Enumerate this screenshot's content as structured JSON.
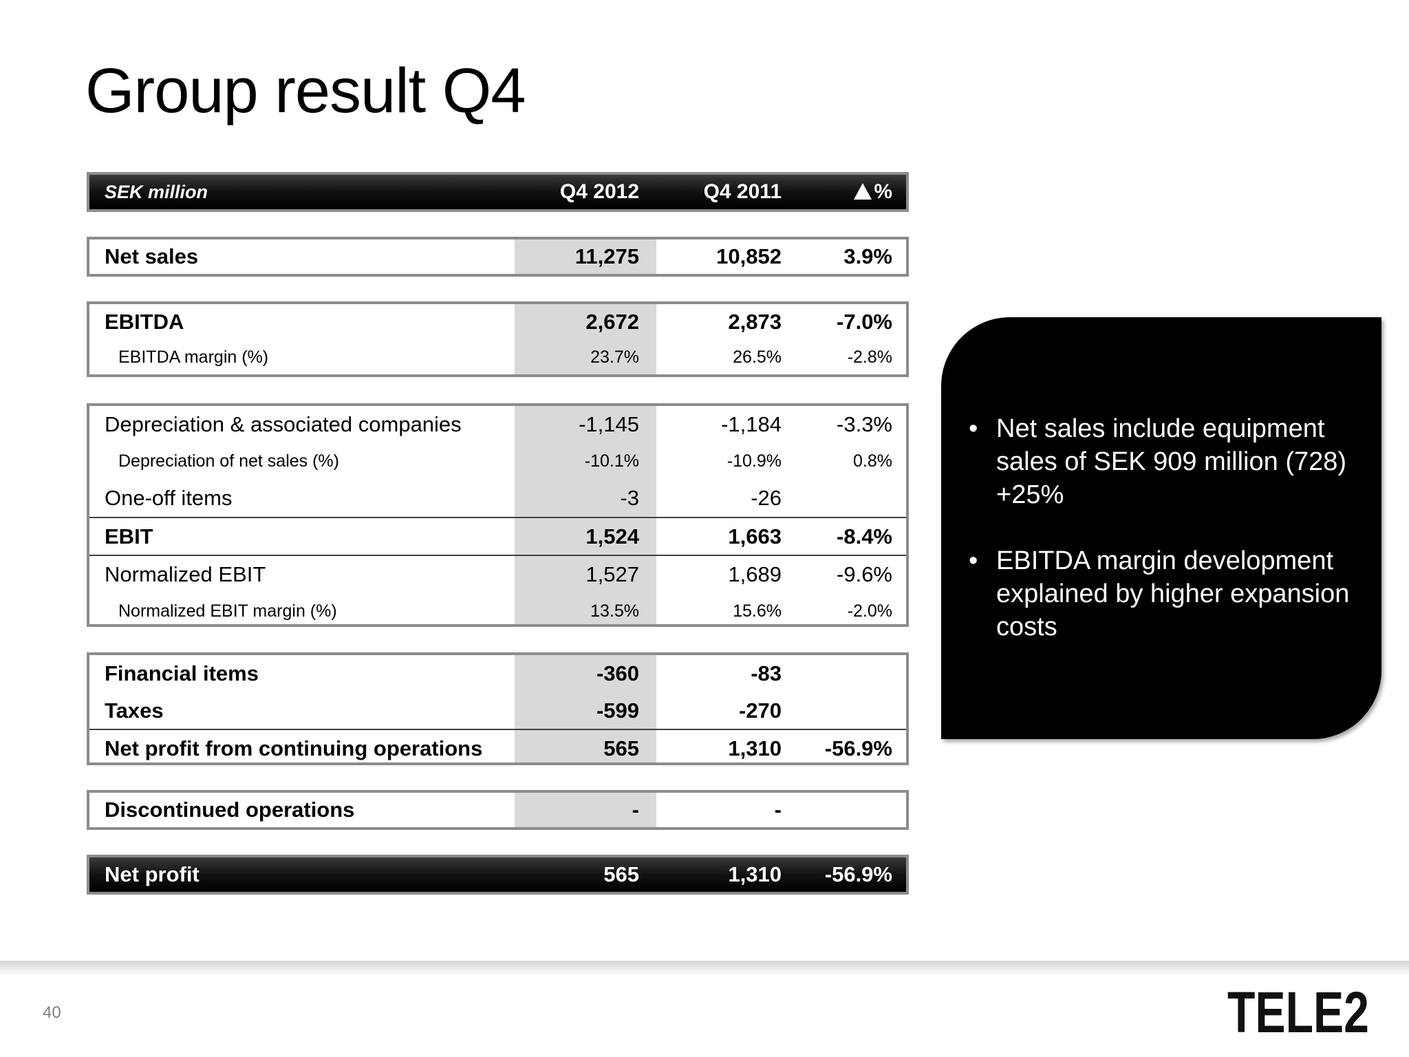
{
  "title": "Group result Q4",
  "table": {
    "header": {
      "label": "SEK million",
      "col1": "Q4 2012",
      "col2": "Q4 2011",
      "col3": "%"
    },
    "net_sales": {
      "label": "Net sales",
      "q4_2012": "11,275",
      "q4_2011": "10,852",
      "change": "3.9%"
    },
    "ebitda": {
      "label": "EBITDA",
      "q4_2012": "2,672",
      "q4_2011": "2,873",
      "change": "-7.0%"
    },
    "ebitda_margin": {
      "label": "EBITDA margin (%)",
      "q4_2012": "23.7%",
      "q4_2011": "26.5%",
      "change": "-2.8%"
    },
    "depreciation": {
      "label": "Depreciation & associated companies",
      "q4_2012": "-1,145",
      "q4_2011": "-1,184",
      "change": "-3.3%"
    },
    "depreciation_pct": {
      "label": "Depreciation of net sales (%)",
      "q4_2012": "-10.1%",
      "q4_2011": "-10.9%",
      "change": "0.8%"
    },
    "one_off": {
      "label": "One-off items",
      "q4_2012": "-3",
      "q4_2011": "-26",
      "change": ""
    },
    "ebit": {
      "label": "EBIT",
      "q4_2012": "1,524",
      "q4_2011": "1,663",
      "change": "-8.4%"
    },
    "normalized_ebit": {
      "label": "Normalized EBIT",
      "q4_2012": "1,527",
      "q4_2011": "1,689",
      "change": "-9.6%"
    },
    "normalized_ebit_margin": {
      "label": "Normalized EBIT margin (%)",
      "q4_2012": "13.5%",
      "q4_2011": "15.6%",
      "change": "-2.0%"
    },
    "financial_items": {
      "label": "Financial items",
      "q4_2012": "-360",
      "q4_2011": "-83",
      "change": ""
    },
    "taxes": {
      "label": "Taxes",
      "q4_2012": "-599",
      "q4_2011": "-270",
      "change": ""
    },
    "net_profit_continuing": {
      "label": "Net profit from continuing operations",
      "q4_2012": "565",
      "q4_2011": "1,310",
      "change": "-56.9%"
    },
    "discontinued": {
      "label": "Discontinued operations",
      "q4_2012": "-",
      "q4_2011": "-",
      "change": ""
    },
    "net_profit": {
      "label": "Net profit",
      "q4_2012": "565",
      "q4_2011": "1,310",
      "change": "-56.9%"
    }
  },
  "callout": {
    "bullets": [
      "Net sales include equipment sales of SEK 909 million (728) +25%",
      "EBITDA margin development explained by higher expansion costs"
    ]
  },
  "footer": {
    "page_number": "40",
    "logo_text": "TELE2"
  }
}
